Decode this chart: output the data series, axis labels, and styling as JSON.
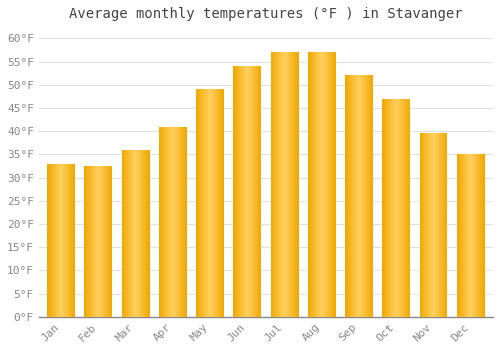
{
  "title": "Average monthly temperatures (°F ) in Stavanger",
  "months": [
    "Jan",
    "Feb",
    "Mar",
    "Apr",
    "May",
    "Jun",
    "Jul",
    "Aug",
    "Sep",
    "Oct",
    "Nov",
    "Dec"
  ],
  "values": [
    33,
    32.5,
    36,
    41,
    49,
    54,
    57,
    57,
    52,
    47,
    39.5,
    35
  ],
  "bar_color_light": "#FFD060",
  "bar_color_dark": "#F0A800",
  "background_color": "#FFFFFF",
  "grid_color": "#E0E0E0",
  "ylim": [
    0,
    62
  ],
  "yticks": [
    0,
    5,
    10,
    15,
    20,
    25,
    30,
    35,
    40,
    45,
    50,
    55,
    60
  ],
  "title_fontsize": 10,
  "tick_fontsize": 8,
  "tick_color": "#888888",
  "spine_color": "#888888"
}
